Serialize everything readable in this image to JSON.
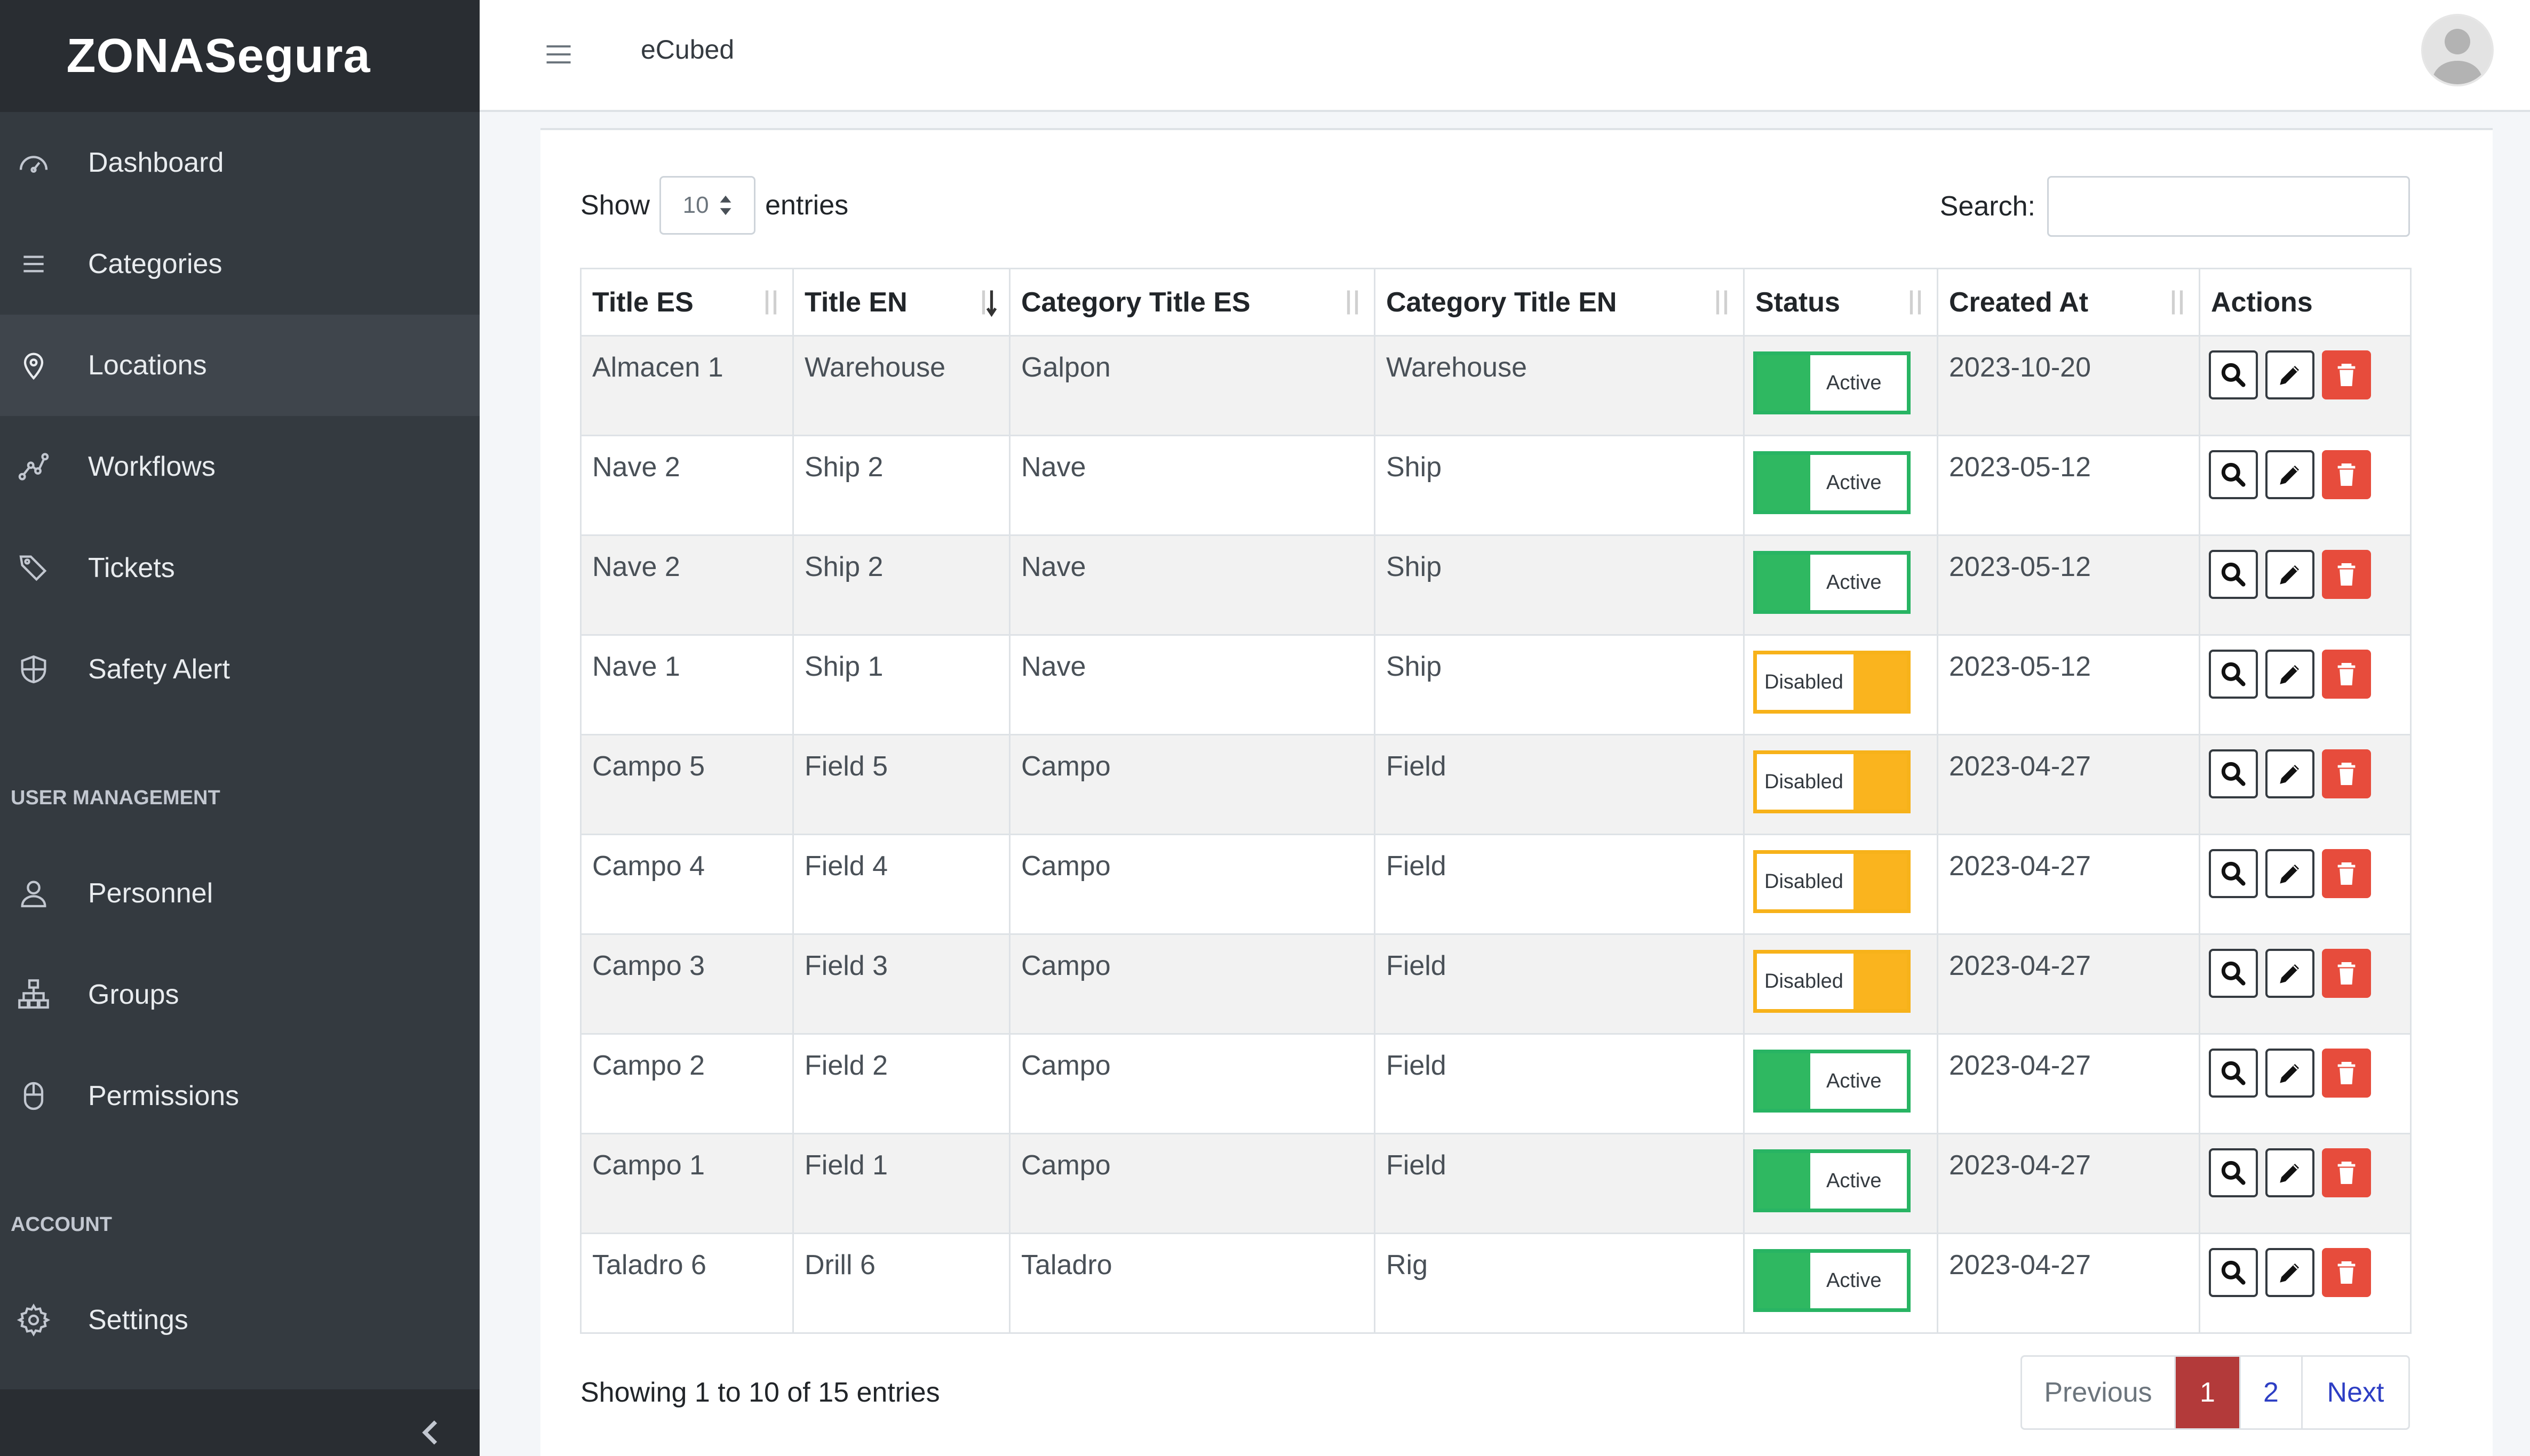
{
  "brand": {
    "title": "ZONASegura"
  },
  "sidebar": {
    "items": [
      {
        "label": "Dashboard",
        "icon": "dashboard-icon"
      },
      {
        "label": "Categories",
        "icon": "list-icon"
      },
      {
        "label": "Locations",
        "icon": "map-pin-icon"
      },
      {
        "label": "Workflows",
        "icon": "workflow-icon"
      },
      {
        "label": "Tickets",
        "icon": "tags-icon"
      },
      {
        "label": "Safety Alert",
        "icon": "shield-icon"
      },
      {
        "label": "Personnel",
        "icon": "user-icon"
      },
      {
        "label": "Groups",
        "icon": "sitemap-icon"
      },
      {
        "label": "Permissions",
        "icon": "mouse-icon"
      },
      {
        "label": "Settings",
        "icon": "gear-icon"
      }
    ],
    "active_index": 2,
    "headers": {
      "user_management": "USER MANAGEMENT",
      "account": "ACCOUNT"
    }
  },
  "topbar": {
    "title": "eCubed"
  },
  "table_controls": {
    "show_label": "Show",
    "entries_label": "entries",
    "page_size": "10",
    "search_label": "Search:",
    "search_value": ""
  },
  "table": {
    "columns": [
      "Title ES",
      "Title EN",
      "Category Title ES",
      "Category Title EN",
      "Status",
      "Created At",
      "Actions"
    ],
    "rows": [
      {
        "title_es": "Almacen 1",
        "title_en": "Warehouse",
        "cat_es": "Galpon",
        "cat_en": "Warehouse",
        "status": "Active",
        "created": "2023-10-20"
      },
      {
        "title_es": "Nave 2",
        "title_en": "Ship 2",
        "cat_es": "Nave",
        "cat_en": "Ship",
        "status": "Active",
        "created": "2023-05-12"
      },
      {
        "title_es": "Nave 2",
        "title_en": "Ship 2",
        "cat_es": "Nave",
        "cat_en": "Ship",
        "status": "Active",
        "created": "2023-05-12"
      },
      {
        "title_es": "Nave 1",
        "title_en": "Ship 1",
        "cat_es": "Nave",
        "cat_en": "Ship",
        "status": "Disabled",
        "created": "2023-05-12"
      },
      {
        "title_es": "Campo 5",
        "title_en": "Field 5",
        "cat_es": "Campo",
        "cat_en": "Field",
        "status": "Disabled",
        "created": "2023-04-27"
      },
      {
        "title_es": "Campo 4",
        "title_en": "Field 4",
        "cat_es": "Campo",
        "cat_en": "Field",
        "status": "Disabled",
        "created": "2023-04-27"
      },
      {
        "title_es": "Campo 3",
        "title_en": "Field 3",
        "cat_es": "Campo",
        "cat_en": "Field",
        "status": "Disabled",
        "created": "2023-04-27"
      },
      {
        "title_es": "Campo 2",
        "title_en": "Field 2",
        "cat_es": "Campo",
        "cat_en": "Field",
        "status": "Active",
        "created": "2023-04-27"
      },
      {
        "title_es": "Campo 1",
        "title_en": "Field 1",
        "cat_es": "Campo",
        "cat_en": "Field",
        "status": "Active",
        "created": "2023-04-27"
      },
      {
        "title_es": "Taladro 6",
        "title_en": "Drill 6",
        "cat_es": "Taladro",
        "cat_en": "Rig",
        "status": "Active",
        "created": "2023-04-27"
      }
    ]
  },
  "footer": {
    "info": "Showing 1 to 10 of 15 entries",
    "pagination": {
      "previous": "Previous",
      "pages": [
        "1",
        "2"
      ],
      "current": "1",
      "next": "Next"
    }
  },
  "colors": {
    "sidebar_bg": "#343a40",
    "active_green": "#2fb861",
    "disabled_amber": "#fab41e",
    "delete_red": "#e74c3c",
    "current_page": "#b33a3a",
    "link_blue": "#2d3ec4"
  }
}
